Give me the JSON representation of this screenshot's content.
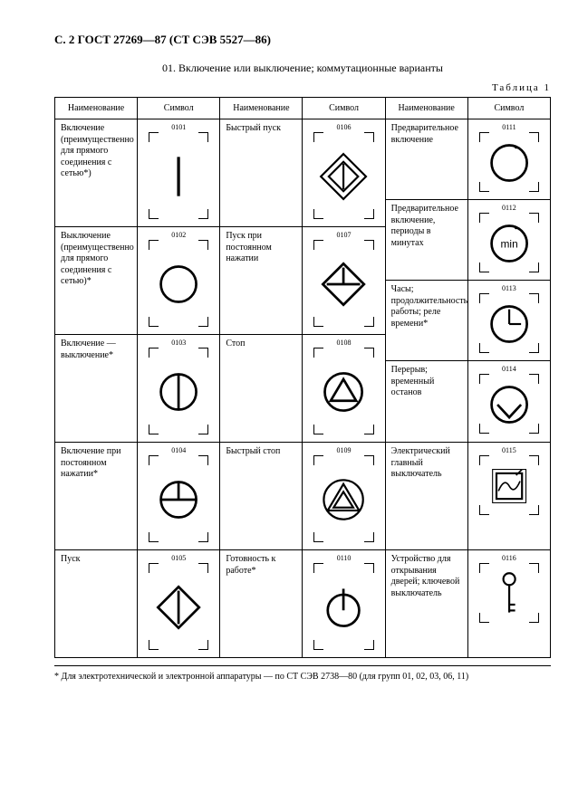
{
  "page_header": "С. 2  ГОСТ 27269—87 (СТ СЭВ 5527—86)",
  "section_title": "01. Включение или выключение; коммутационные варианты",
  "table_caption": "Таблица 1",
  "columns": {
    "name": "Наименование",
    "symbol": "Символ"
  },
  "footnote": "* Для электротехнической и электронной аппаратуры — по СТ СЭВ 2738—80 (для групп 01, 02, 03, 06, 11)",
  "col1": [
    {
      "code": "0101",
      "name": "Включение (преимущественно для прямого соединения с сетью*)",
      "svg": "<line x1='25' y1='5' x2='25' y2='45' stroke='#000' stroke-width='3'/>"
    },
    {
      "code": "0102",
      "name": "Выключение (преимущественно для прямого соединения с сетью)*",
      "svg": "<circle cx='25' cy='25' r='18' fill='none' stroke='#000' stroke-width='2.5'/>"
    },
    {
      "code": "0103",
      "name": "Включение — выключение*",
      "svg": "<circle cx='25' cy='25' r='18' fill='none' stroke='#000' stroke-width='2.5'/><line x1='25' y1='7' x2='25' y2='43' stroke='#000' stroke-width='2.5'/>"
    },
    {
      "code": "0104",
      "name": "Включение при постоянном нажатии*",
      "svg": "<circle cx='25' cy='25' r='18' fill='none' stroke='#000' stroke-width='2.5'/><line x1='7' y1='25' x2='43' y2='25' stroke='#000' stroke-width='2.5'/><line x1='25' y1='7' x2='25' y2='25' stroke='#000' stroke-width='2.5'/>"
    },
    {
      "code": "0105",
      "name": "Пуск",
      "svg": "<polygon points='25,4 46,25 25,46 4,25' fill='none' stroke='#000' stroke-width='2.5'/><line x1='25' y1='8' x2='25' y2='42' stroke='#000' stroke-width='2.5'/>"
    }
  ],
  "col2": [
    {
      "code": "0106",
      "name": "Быстрый пуск",
      "svg": "<polygon points='25,2 48,25 25,48 2,25' fill='none' stroke='#000' stroke-width='2'/><polygon points='25,10 40,25 25,40 10,25' fill='none' stroke='#000' stroke-width='2'/><line x1='25' y1='12' x2='25' y2='38' stroke='#000' stroke-width='2'/>"
    },
    {
      "code": "0107",
      "name": "Пуск при постоянном нажатии",
      "svg": "<polygon points='25,4 46,25 25,46 4,25' fill='none' stroke='#000' stroke-width='2.5'/><line x1='8' y1='25' x2='42' y2='25' stroke='#000' stroke-width='2.5'/><line x1='25' y1='8' x2='25' y2='25' stroke='#000' stroke-width='2.5'/>"
    },
    {
      "code": "0108",
      "name": "Стоп",
      "svg": "<circle cx='25' cy='25' r='19' fill='none' stroke='#000' stroke-width='2.5'/><polygon points='25,12 38,34 12,34' fill='none' stroke='#000' stroke-width='2.5'/>"
    },
    {
      "code": "0109",
      "name": "Быстрый стоп",
      "svg": "<circle cx='25' cy='25' r='20' fill='none' stroke='#000' stroke-width='2'/><polygon points='25,9 41,36 9,36' fill='none' stroke='#000' stroke-width='2'/><polygon points='25,17 35,33 15,33' fill='none' stroke='#000' stroke-width='2'/>"
    },
    {
      "code": "0110",
      "name": "Готовность к работе*",
      "svg": "<circle cx='25' cy='28' r='16' fill='none' stroke='#000' stroke-width='2.5'/><line x1='25' y1='6' x2='25' y2='28' stroke='#000' stroke-width='2.5'/>"
    }
  ],
  "col3": [
    {
      "code": "0111",
      "name": "Предварительное включение",
      "svg": "<circle cx='25' cy='25' r='18' fill='none' stroke='#000' stroke-width='2.5'/><circle cx='32' cy='9' r='1.5' fill='#000'/>"
    },
    {
      "code": "0112",
      "name": "Предварительное включение, периоды в минутах",
      "svg": "<circle cx='25' cy='25' r='18' fill='none' stroke='#000' stroke-width='2.5'/><circle cx='32' cy='9' r='1.5' fill='#000'/><text x='25' y='29' font-size='11' font-family='Arial' text-anchor='middle'>min</text>"
    },
    {
      "code": "0113",
      "name": "Часы; продолжительность работы; реле времени*",
      "svg": "<circle cx='25' cy='25' r='18' fill='none' stroke='#000' stroke-width='2.5'/><line x1='25' y1='25' x2='25' y2='10' stroke='#000' stroke-width='2'/><line x1='25' y1='25' x2='37' y2='25' stroke='#000' stroke-width='2'/>"
    },
    {
      "code": "0114",
      "name": "Перерыв; временный останов",
      "svg": "<circle cx='25' cy='25' r='18' fill='none' stroke='#000' stroke-width='2.5'/><polyline points='13,25 25,38 37,25' fill='none' stroke='#000' stroke-width='2.5'/>"
    },
    {
      "code": "0115",
      "name": "Электрический главный выключатель",
      "svg": "<rect x='12' y='12' width='26' height='26' fill='none' stroke='#000' stroke-width='2'/><rect x='8' y='8' width='34' height='34' fill='none' stroke='#000' stroke-width='1'/><path d='M 14 30 Q 20 16 25 25 Q 30 34 36 20' fill='none' stroke='#000' stroke-width='1.5'/><line x1='32' y1='14' x2='38' y2='8' stroke='#000' stroke-width='1.5'/>"
    },
    {
      "code": "0116",
      "name": "Устройство для открывания дверей; ключевой выключатель",
      "svg": "<circle cx='25' cy='10' r='6' fill='none' stroke='#000' stroke-width='2'/><line x1='25' y1='16' x2='25' y2='44' stroke='#000' stroke-width='2'/><line x1='25' y1='36' x2='31' y2='36' stroke='#000' stroke-width='2'/><line x1='25' y1='42' x2='31' y2='42' stroke='#000' stroke-width='2'/>"
    }
  ]
}
